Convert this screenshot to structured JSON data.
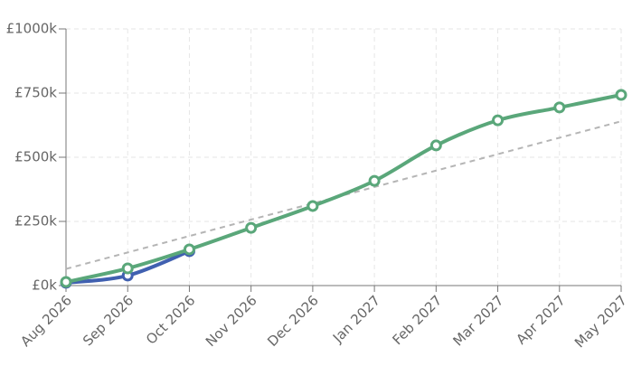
{
  "chart_data": {
    "type": "line",
    "categories": [
      "Aug 2026",
      "Sep 2026",
      "Oct 2026",
      "Nov 2026",
      "Dec 2026",
      "Jan 2027",
      "Feb 2027",
      "Mar 2027",
      "Apr 2027",
      "May 2027"
    ],
    "series": [
      {
        "color": "#b5b5b5",
        "dashed": true,
        "markers": false,
        "values": [
          65,
          129,
          193,
          257,
          320,
          384,
          448,
          512,
          576,
          640
        ]
      },
      {
        "color": "#4060b0",
        "dashed": false,
        "markers": true,
        "values": [
          11,
          39,
          134,
          null,
          null,
          null,
          null,
          null,
          null,
          null
        ]
      },
      {
        "color": "#5aa77a",
        "dashed": false,
        "markers": true,
        "values": [
          14,
          67,
          141,
          225,
          310,
          408,
          546,
          644,
          694,
          743
        ]
      }
    ],
    "ylim": [
      0,
      1000
    ],
    "yticks": [
      {
        "value": 0,
        "label": "£0k"
      },
      {
        "value": 250,
        "label": "£250k"
      },
      {
        "value": 500,
        "label": "£500k"
      },
      {
        "value": 750,
        "label": "£750k"
      },
      {
        "value": 1000,
        "label": "£1000k"
      }
    ],
    "grid": true
  }
}
